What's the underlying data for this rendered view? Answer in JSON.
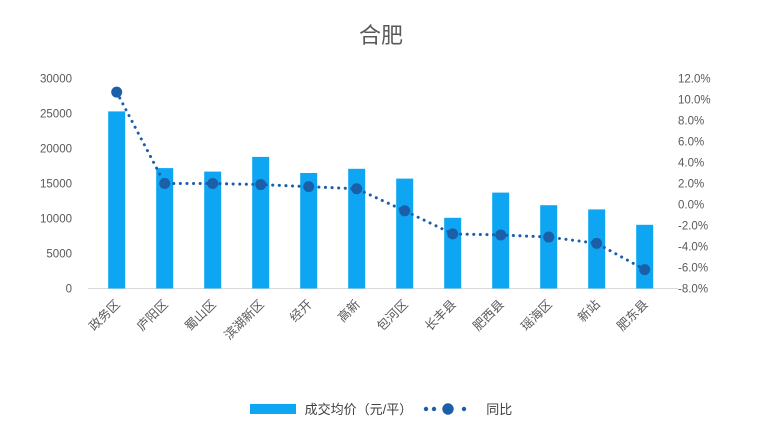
{
  "chart_data": {
    "type": "bar",
    "combo": "bar+line dual-axis",
    "title": "合肥",
    "categories": [
      "政务区",
      "庐阳区",
      "蜀山区",
      "滨湖新区",
      "经开",
      "高新",
      "包河区",
      "长丰县",
      "肥西县",
      "瑶海区",
      "新站",
      "肥东县"
    ],
    "series": [
      {
        "name": "成交均价（元/平）",
        "type": "bar",
        "axis": "left",
        "values": [
          25300,
          17200,
          16700,
          18800,
          16500,
          17100,
          15700,
          10100,
          13700,
          11900,
          11300,
          9100
        ]
      },
      {
        "name": "同比",
        "type": "line",
        "axis": "right",
        "values": [
          10.7,
          2.0,
          2.0,
          1.9,
          1.7,
          1.5,
          -0.6,
          -2.8,
          -2.9,
          -3.1,
          -3.7,
          -6.2
        ]
      }
    ],
    "left_axis": {
      "min": 0,
      "max": 30000,
      "step": 5000,
      "tick_labels": [
        "0",
        "5000",
        "10000",
        "15000",
        "20000",
        "25000",
        "30000"
      ]
    },
    "right_axis": {
      "min": -8,
      "max": 12,
      "step": 2,
      "tick_labels": [
        "12.0%",
        "10.0%",
        "8.0%",
        "6.0%",
        "4.0%",
        "2.0%",
        "0.0%",
        "-2.0%",
        "-4.0%",
        "-6.0%",
        "-8.0%"
      ]
    },
    "grid": false,
    "legend_position": "bottom",
    "x_label_rotation_deg": -45,
    "legend": {
      "bar_label": "成交均价（元/平）",
      "line_label": "同比"
    },
    "colors": {
      "bar": "#0ea6f2",
      "line": "#1b5fa8",
      "text": "#595959",
      "axis_line": "#d9d9d9",
      "legend_text": "#404040"
    }
  }
}
